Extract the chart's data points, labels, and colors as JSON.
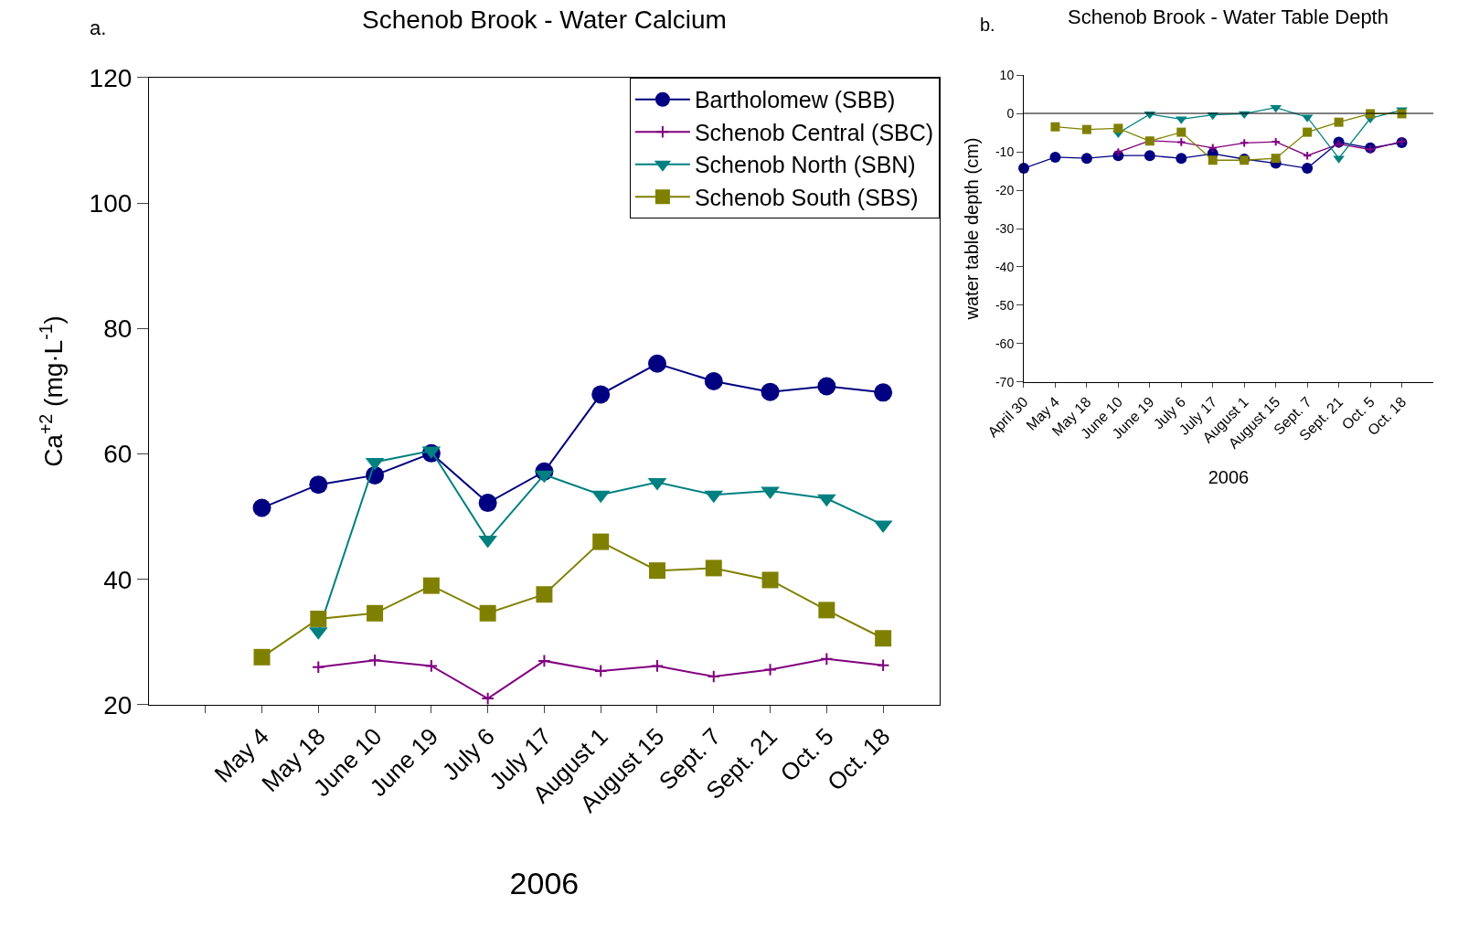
{
  "chart_data": [
    {
      "type": "line",
      "title": "Schenob Brook - Water Calcium",
      "xlabel": "2006",
      "ylabel": "Ca$^{+2}$ (mg·L$^{-1}$)",
      "annotations": [
        "a."
      ],
      "categories": [
        null,
        "May 4",
        "May 18",
        "June 10",
        "June 19",
        "July 6",
        "July 17",
        "August 1",
        "August 15",
        "Sept. 7",
        "Sept. 21",
        "Oct. 5",
        "Oct. 18"
      ],
      "ylim": [
        20,
        120
      ],
      "yticks": [
        20,
        40,
        60,
        80,
        100,
        120
      ],
      "legend": "top right",
      "line_style": "solid",
      "series": [
        {
          "name": "Bartholomew (SBB)",
          "color": "#000080",
          "marker": "circle",
          "values": [
            null,
            51.4,
            55.1,
            56.6,
            60.1,
            52.2,
            57.2,
            69.5,
            74.4,
            71.6,
            69.9,
            70.8,
            69.8
          ]
        },
        {
          "name": "Schenob Central (SBC)",
          "color": "#800080",
          "marker": "cross",
          "values": [
            null,
            null,
            26.0,
            27.1,
            26.2,
            21.0,
            27.0,
            25.4,
            26.2,
            24.5,
            25.6,
            27.3,
            26.3
          ]
        },
        {
          "name": "Schenob North (SBN)",
          "color": "#008080",
          "marker": "triangle",
          "values": [
            null,
            null,
            31.7,
            58.7,
            60.5,
            46.3,
            56.7,
            53.5,
            55.5,
            53.5,
            54.1,
            52.9,
            48.7
          ]
        },
        {
          "name": "Schenob South (SBS)",
          "color": "#808000",
          "marker": "square",
          "values": [
            null,
            27.6,
            33.7,
            34.6,
            39.0,
            34.6,
            37.6,
            46.0,
            41.4,
            41.8,
            39.9,
            35.1,
            30.6
          ]
        }
      ]
    },
    {
      "type": "line",
      "title": "Schenob Brook - Water Table Depth",
      "xlabel": "2006",
      "ylabel": "water table depth (cm)",
      "annotations": [
        "b."
      ],
      "categories": [
        "April 30",
        "May 4",
        "May 18",
        "June 10",
        "June 19",
        "July 6",
        "July 17",
        "August 1",
        "August 15",
        "Sept. 7",
        "Sept. 21",
        "Oct. 5",
        "Oct. 18"
      ],
      "ylim": [
        -70,
        10
      ],
      "yticks": [
        -70,
        -60,
        -50,
        -40,
        -30,
        -20,
        -10,
        0,
        10
      ],
      "legend": false,
      "line_style": "solid",
      "ref_lines": [
        {
          "axis": "y",
          "value": 0,
          "color": "#000000"
        }
      ],
      "series": [
        {
          "color": "#000080",
          "marker": "circle",
          "values": [
            -14.3,
            -11.4,
            -11.7,
            -11.0,
            -11.0,
            -11.7,
            -10.5,
            -11.9,
            -13.0,
            -14.3,
            -7.5,
            -9.0,
            -7.6
          ]
        },
        {
          "color": "#800080",
          "marker": "cross",
          "values": [
            null,
            null,
            null,
            -10.1,
            -7.1,
            -7.5,
            -9.0,
            -7.7,
            -7.4,
            -11.0,
            -8.0,
            -9.4,
            -7.3
          ]
        },
        {
          "color": "#008080",
          "marker": "triangle",
          "values": [
            null,
            null,
            null,
            -5.1,
            -0.2,
            -1.5,
            -0.4,
            -0.1,
            1.5,
            -1.0,
            -11.7,
            -1.3,
            0.9
          ]
        },
        {
          "color": "#808000",
          "marker": "square",
          "values": [
            null,
            -3.5,
            -4.2,
            -3.9,
            -7.2,
            -4.9,
            -12.2,
            -12.2,
            -11.7,
            -4.9,
            -2.3,
            -0.1,
            -0.1
          ]
        }
      ]
    }
  ]
}
